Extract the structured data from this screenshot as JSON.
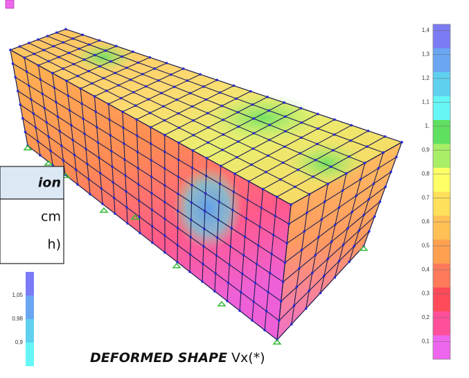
{
  "header_cell": "ion",
  "table": {
    "rows": [
      [
        "cm"
      ],
      [
        "h)"
      ]
    ]
  },
  "color_scale": {
    "labels": [
      "1,4",
      "1,3",
      "1,2",
      "1,1",
      "1,",
      "0,9",
      "0,8",
      "0,7",
      "0,6",
      "0,5",
      "0,4",
      "0,3",
      "0,2",
      "0,1"
    ]
  },
  "small_scale": {
    "labels": [
      "1,05",
      "0,98",
      "0,9"
    ]
  },
  "caption": {
    "title": "DEFORMED SHAPE",
    "variable": "Vx(*)"
  }
}
